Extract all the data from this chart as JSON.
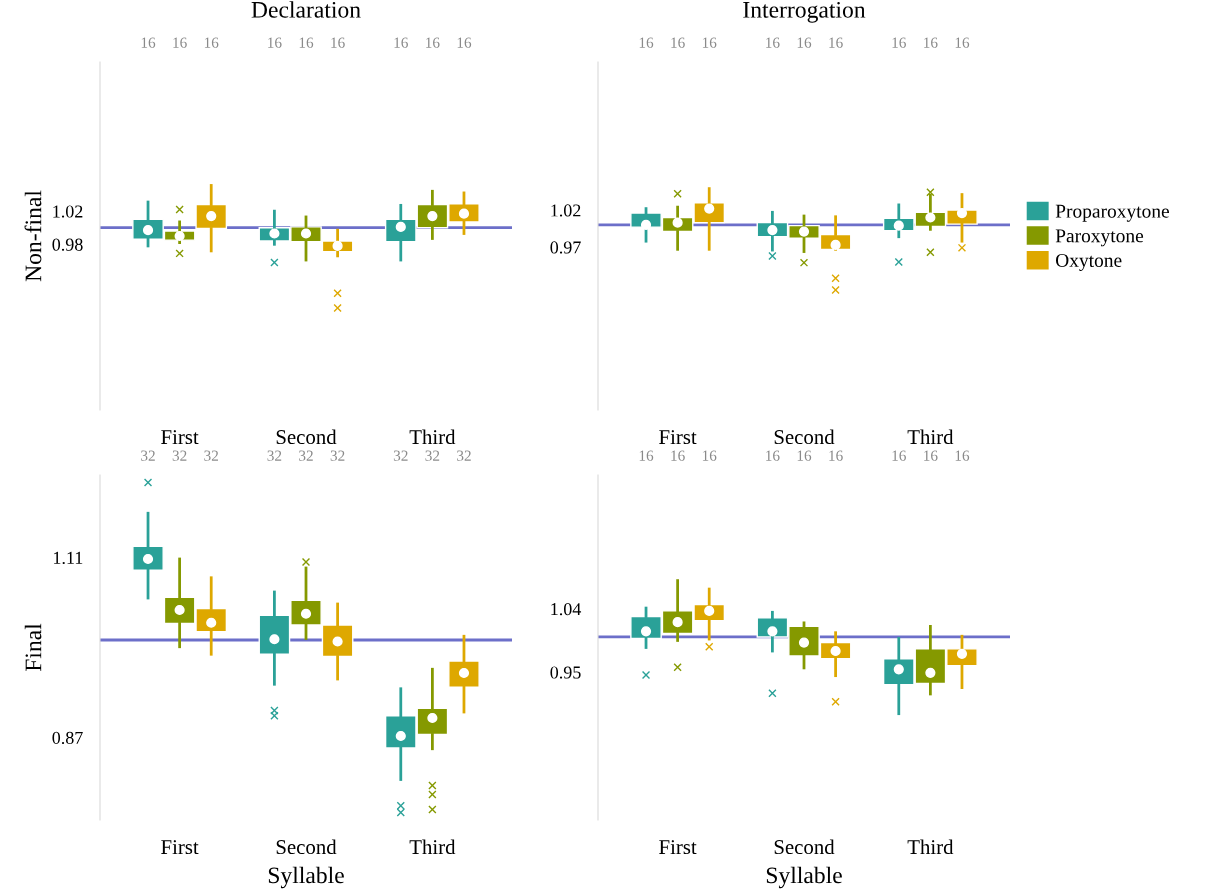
{
  "chart_data": [
    {
      "type": "box",
      "title": "Declaration",
      "ylabel": "Non-final",
      "categories": [
        "First",
        "Second",
        "Third"
      ],
      "ylim": [
        0.78,
        1.2
      ],
      "yticks": [
        1.02,
        0.98
      ],
      "grid": false,
      "ref_lines": [
        {
          "axis": "y",
          "value": 1,
          "color": "#6c6fc9"
        }
      ],
      "annotations": [
        "16",
        "16",
        "16",
        "16",
        "16",
        "16",
        "16",
        "16",
        "16"
      ],
      "series": [
        {
          "color": "#2aa198",
          "boxes": [
            {
              "low": 0.978,
              "q1": 0.986,
              "median": 0.997,
              "q3": 1.01,
              "high": 1.031
            },
            {
              "low": 0.98,
              "q1": 0.984,
              "median": 0.993,
              "q3": 1.0,
              "high": 1.02,
              "outliers": [
                0.958
              ]
            },
            {
              "low": 0.961,
              "q1": 0.983,
              "median": 1.001,
              "q3": 1.01,
              "high": 1.027
            }
          ]
        },
        {
          "color": "#859900",
          "boxes": [
            {
              "low": 0.982,
              "q1": 0.985,
              "median": 0.99,
              "q3": 0.996,
              "high": 1.007,
              "outliers": [
                1.022,
                0.969
              ]
            },
            {
              "low": 0.961,
              "q1": 0.983,
              "median": 0.993,
              "q3": 1.001,
              "high": 1.013
            },
            {
              "low": 0.987,
              "q1": 1.0,
              "median": 1.014,
              "q3": 1.028,
              "high": 1.044
            }
          ]
        },
        {
          "color": "#dea800",
          "boxes": [
            {
              "low": 0.972,
              "q1": 0.999,
              "median": 1.014,
              "q3": 1.028,
              "high": 1.051
            },
            {
              "low": 0.966,
              "q1": 0.971,
              "median": 0.978,
              "q3": 0.984,
              "high": 0.997,
              "outliers": [
                0.921,
                0.903
              ]
            },
            {
              "low": 0.993,
              "q1": 1.007,
              "median": 1.017,
              "q3": 1.029,
              "high": 1.042
            }
          ]
        }
      ]
    },
    {
      "type": "box",
      "title": "Interrogation",
      "categories": [
        "First",
        "Second",
        "Third"
      ],
      "ylim": [
        0.75,
        1.22
      ],
      "yticks": [
        1.02,
        0.97
      ],
      "grid": false,
      "legend": "right",
      "ref_lines": [
        {
          "axis": "y",
          "value": 1,
          "color": "#6c6fc9"
        }
      ],
      "annotations": [
        "16",
        "16",
        "16",
        "16",
        "16",
        "16",
        "16",
        "16",
        "16"
      ],
      "series": [
        {
          "name": "Proparoxytone",
          "color": "#2aa198",
          "boxes": [
            {
              "low": 0.978,
              "q1": 0.997,
              "median": 1.0,
              "q3": 1.016,
              "high": 1.022
            },
            {
              "low": 0.966,
              "q1": 0.984,
              "median": 0.993,
              "q3": 1.003,
              "high": 1.017,
              "outliers": [
                0.958
              ]
            },
            {
              "low": 0.984,
              "q1": 0.992,
              "median": 0.999,
              "q3": 1.009,
              "high": 1.027,
              "outliers": [
                0.95
              ]
            }
          ]
        },
        {
          "name": "Paroxytone",
          "color": "#859900",
          "boxes": [
            {
              "low": 0.967,
              "q1": 0.991,
              "median": 1.003,
              "q3": 1.01,
              "high": 1.024,
              "outliers": [
                1.042
              ]
            },
            {
              "low": 0.964,
              "q1": 0.982,
              "median": 0.991,
              "q3": 0.999,
              "high": 1.012,
              "outliers": [
                0.949
              ]
            },
            {
              "low": 0.994,
              "q1": 0.998,
              "median": 1.01,
              "q3": 1.017,
              "high": 1.04,
              "outliers": [
                1.044,
                0.963
              ]
            }
          ]
        },
        {
          "name": "Oxytone",
          "color": "#dea800",
          "boxes": [
            {
              "low": 0.967,
              "q1": 1.003,
              "median": 1.022,
              "q3": 1.03,
              "high": 1.049
            },
            {
              "low": 0.967,
              "q1": 0.967,
              "median": 0.973,
              "q3": 0.987,
              "high": 1.011,
              "outliers": [
                0.928,
                0.912
              ]
            },
            {
              "low": 0.978,
              "q1": 1.001,
              "median": 1.016,
              "q3": 1.02,
              "high": 1.041,
              "outliers": [
                0.969
              ]
            }
          ]
        }
      ]
    },
    {
      "type": "box",
      "ylabel": "Final",
      "xlabel": "Syllable",
      "categories": [
        "First",
        "Second",
        "Third"
      ],
      "ylim": [
        0.76,
        1.22
      ],
      "yticks": [
        1.11,
        0.87
      ],
      "grid": false,
      "ref_lines": [
        {
          "axis": "y",
          "value": 1,
          "color": "#6c6fc9"
        }
      ],
      "annotations": [
        "32",
        "32",
        "32",
        "32",
        "32",
        "32",
        "32",
        "32",
        "32"
      ],
      "series": [
        {
          "color": "#2aa198",
          "boxes": [
            {
              "low": 1.056,
              "q1": 1.093,
              "median": 1.108,
              "q3": 1.125,
              "high": 1.169,
              "outliers": [
                1.21
              ]
            },
            {
              "low": 0.941,
              "q1": 0.981,
              "median": 1.001,
              "q3": 1.033,
              "high": 1.064,
              "outliers": [
                0.906,
                0.899
              ]
            },
            {
              "low": 0.814,
              "q1": 0.856,
              "median": 0.872,
              "q3": 0.899,
              "high": 0.935,
              "outliers": [
                0.779,
                0.77
              ]
            }
          ]
        },
        {
          "color": "#859900",
          "boxes": [
            {
              "low": 0.991,
              "q1": 1.022,
              "median": 1.04,
              "q3": 1.057,
              "high": 1.108
            },
            {
              "low": 1.002,
              "q1": 1.02,
              "median": 1.035,
              "q3": 1.053,
              "high": 1.096,
              "outliers": [
                1.104
              ]
            },
            {
              "low": 0.855,
              "q1": 0.874,
              "median": 0.896,
              "q3": 0.909,
              "high": 0.961,
              "outliers": [
                0.806,
                0.794,
                0.774
              ]
            }
          ]
        },
        {
          "color": "#dea800",
          "boxes": [
            {
              "low": 0.981,
              "q1": 1.011,
              "median": 1.023,
              "q3": 1.042,
              "high": 1.083
            },
            {
              "low": 0.948,
              "q1": 0.978,
              "median": 0.998,
              "q3": 1.02,
              "high": 1.048
            },
            {
              "low": 0.904,
              "q1": 0.937,
              "median": 0.956,
              "q3": 0.972,
              "high": 1.005
            }
          ]
        }
      ]
    },
    {
      "type": "box",
      "xlabel": "Syllable",
      "categories": [
        "First",
        "Second",
        "Third"
      ],
      "ylim": [
        0.74,
        1.23
      ],
      "yticks": [
        1.04,
        0.95
      ],
      "grid": false,
      "ref_lines": [
        {
          "axis": "y",
          "value": 1,
          "color": "#6c6fc9"
        }
      ],
      "annotations": [
        "16",
        "16",
        "16",
        "16",
        "16",
        "16",
        "16",
        "16",
        "16"
      ],
      "series": [
        {
          "color": "#2aa198",
          "boxes": [
            {
              "low": 0.985,
              "q1": 0.998,
              "median": 1.008,
              "q3": 1.029,
              "high": 1.041,
              "outliers": [
                0.946
              ]
            },
            {
              "low": 0.98,
              "q1": 1.0,
              "median": 1.008,
              "q3": 1.027,
              "high": 1.035,
              "outliers": [
                0.92
              ]
            },
            {
              "low": 0.891,
              "q1": 0.932,
              "median": 0.954,
              "q3": 0.969,
              "high": 0.998
            }
          ]
        },
        {
          "color": "#859900",
          "boxes": [
            {
              "low": 0.995,
              "q1": 1.005,
              "median": 1.021,
              "q3": 1.037,
              "high": 1.08,
              "outliers": [
                0.957
              ]
            },
            {
              "low": 0.956,
              "q1": 0.973,
              "median": 0.992,
              "q3": 1.015,
              "high": 1.02
            },
            {
              "low": 0.919,
              "q1": 0.934,
              "median": 0.949,
              "q3": 0.983,
              "high": 1.015
            }
          ]
        },
        {
          "color": "#dea800",
          "boxes": [
            {
              "low": 0.997,
              "q1": 1.023,
              "median": 1.037,
              "q3": 1.046,
              "high": 1.068,
              "outliers": [
                0.986
              ]
            },
            {
              "low": 0.945,
              "q1": 0.969,
              "median": 0.98,
              "q3": 0.992,
              "high": 1.006,
              "outliers": [
                0.908
              ]
            },
            {
              "low": 0.928,
              "q1": 0.959,
              "median": 0.976,
              "q3": 0.983,
              "high": 1.001
            }
          ]
        }
      ]
    }
  ]
}
